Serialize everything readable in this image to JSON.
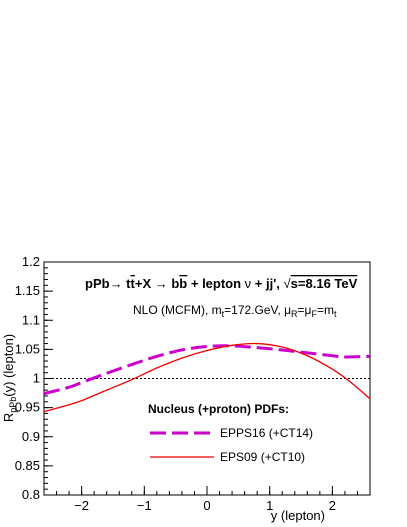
{
  "chart_data": {
    "type": "line",
    "title_parts": {
      "pre": "pPb",
      "arrow1": "→ t",
      "tbar": "t",
      "mid": "+X ",
      "arrow2": "→ b",
      "bbar": "b",
      "post": " + lepton ",
      "nu": "ν",
      "jj": " + jj',  ",
      "sqrt": "√",
      "s": "s=8.16 TeV"
    },
    "subtitle_parts": {
      "a": "NLO (MCFM), m",
      "a_sub": "t",
      "b": "=172.GeV, μ",
      "b_sub": "R",
      "c": "=μ",
      "c_sub": "F",
      "d": "=m",
      "d_sub": "t"
    },
    "xlabel": "y (lepton)",
    "ylabel_parts": {
      "main": "R",
      "sub": "pPb",
      "rest": "(y) (lepton)"
    },
    "xlim": [
      -2.6,
      2.6
    ],
    "ylim": [
      0.8,
      1.2
    ],
    "x_ticks": [
      -2,
      -1,
      0,
      1,
      2
    ],
    "x_tick_labels": [
      "−2",
      "−1",
      "0",
      "1",
      "2"
    ],
    "y_ticks": [
      0.8,
      0.85,
      0.9,
      0.95,
      1.0,
      1.05,
      1.1,
      1.15,
      1.2
    ],
    "y_tick_labels": [
      "0.8",
      "0.85",
      "0.9",
      "0.95",
      "1",
      "1.05",
      "1.1",
      "1.15",
      "1.2"
    ],
    "reference_line": 1.0,
    "legend_title": "Nucleus (+proton) PDFs:",
    "series": [
      {
        "name": "EPPS16 (+CT14)",
        "color": "#cc00cc",
        "style": "dashed",
        "x": [
          -2.6,
          -2.2,
          -2.0,
          -1.6,
          -1.2,
          -0.8,
          -0.4,
          0.0,
          0.4,
          0.8,
          1.2,
          1.6,
          2.0,
          2.2,
          2.6
        ],
        "y": [
          0.974,
          0.985,
          0.993,
          1.009,
          1.024,
          1.038,
          1.049,
          1.055,
          1.056,
          1.053,
          1.049,
          1.044,
          1.039,
          1.037,
          1.038
        ]
      },
      {
        "name": "EPS09 (+CT10)",
        "color": "#ee0000",
        "style": "solid",
        "x": [
          -2.6,
          -2.2,
          -2.0,
          -1.6,
          -1.2,
          -0.8,
          -0.4,
          0.0,
          0.4,
          0.8,
          1.2,
          1.6,
          2.0,
          2.3,
          2.6
        ],
        "y": [
          0.943,
          0.955,
          0.962,
          0.98,
          0.998,
          1.018,
          1.035,
          1.048,
          1.057,
          1.06,
          1.054,
          1.039,
          1.016,
          0.993,
          0.965
        ]
      }
    ]
  }
}
